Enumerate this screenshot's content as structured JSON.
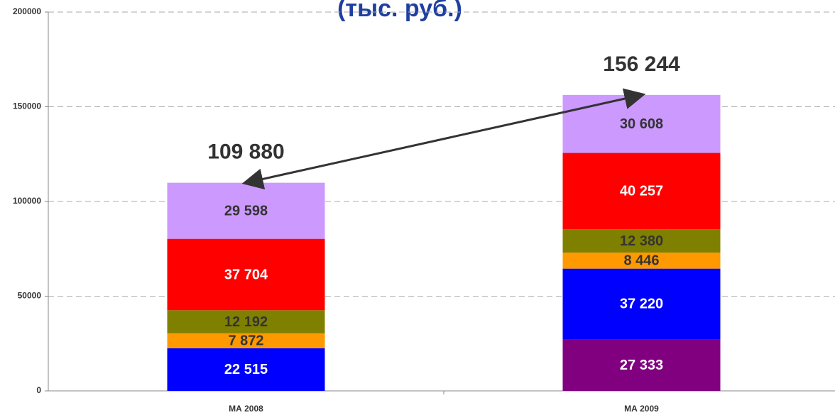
{
  "chart_data": {
    "type": "stacked_bar",
    "title": "(тыс. руб.)",
    "categories": [
      "МА 2008",
      "МА 2009"
    ],
    "series": [
      {
        "color": "#800080",
        "label_color": "#ffffff",
        "values": [
          null,
          27333
        ],
        "value_labels": [
          null,
          "27 333"
        ]
      },
      {
        "color": "#0000ff",
        "label_color": "#ffffff",
        "values": [
          22515,
          37220
        ],
        "value_labels": [
          "22 515",
          "37 220"
        ]
      },
      {
        "color": "#ff9900",
        "label_color": "#333333",
        "values": [
          7872,
          8446
        ],
        "value_labels": [
          "7 872",
          "8 446"
        ]
      },
      {
        "color": "#808000",
        "label_color": "#333333",
        "values": [
          12192,
          12380
        ],
        "value_labels": [
          "12 192",
          "12 380"
        ]
      },
      {
        "color": "#ff0000",
        "label_color": "#ffffff",
        "values": [
          37704,
          40257
        ],
        "value_labels": [
          "37 704",
          "40 257"
        ]
      },
      {
        "color": "#cc99ff",
        "label_color": "#333333",
        "values": [
          29598,
          30608
        ],
        "value_labels": [
          "29 598",
          "30 608"
        ]
      }
    ],
    "totals": [
      109880,
      156244
    ],
    "total_labels": [
      "109 880",
      "156 244"
    ],
    "ylim": [
      0,
      200000
    ],
    "yticks": [
      0,
      50000,
      100000,
      150000,
      200000
    ],
    "grid": true
  }
}
